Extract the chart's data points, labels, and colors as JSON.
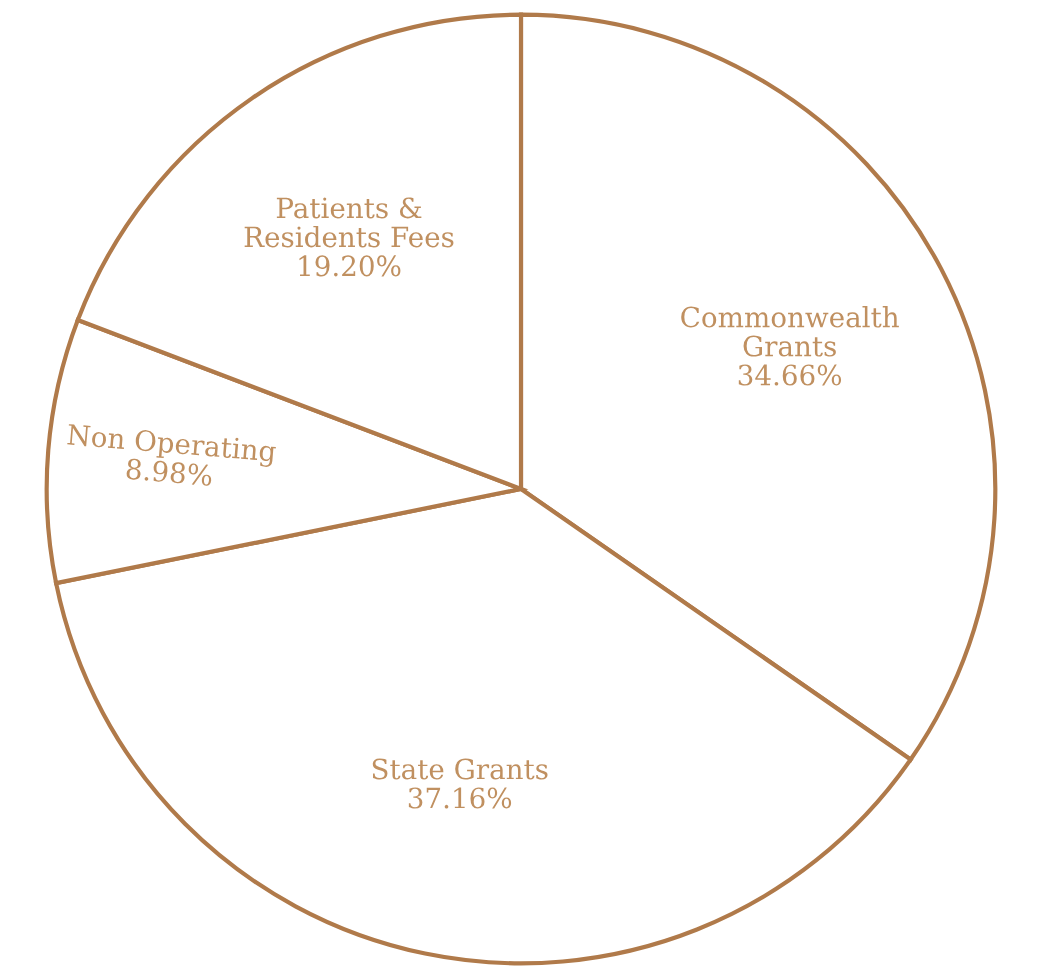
{
  "chart_data": {
    "type": "pie",
    "categories": [
      "Commonwealth\nGrants",
      "State Grants",
      "Non Operating",
      "Patients &\nResidents Fees"
    ],
    "values": [
      34.66,
      37.16,
      8.98,
      19.2
    ],
    "colors": [
      "#ffffff",
      "#ffffff",
      "#ffffff",
      "#ffffff"
    ],
    "value_labels": [
      "34.66%",
      "37.16%",
      "8.98%",
      "19.20%"
    ],
    "legend": false
  }
}
